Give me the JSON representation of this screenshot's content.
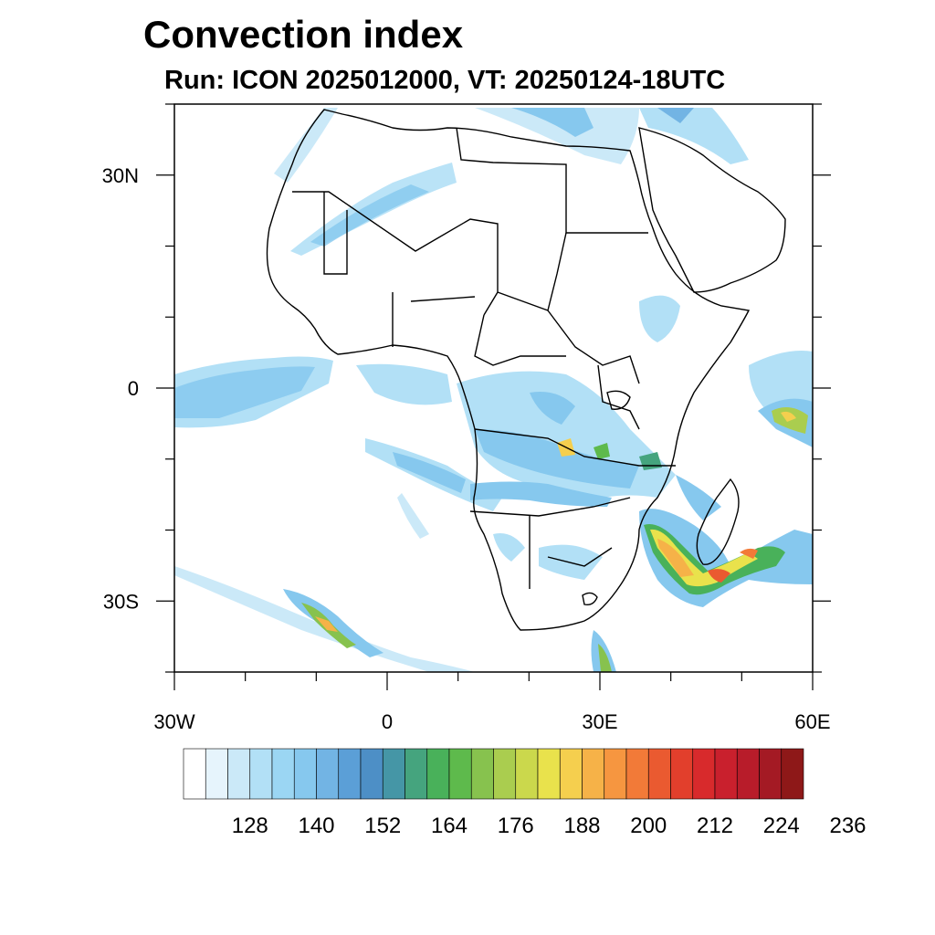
{
  "title": "Convection index",
  "subtitle": "Run: ICON 2025012000,  VT: 20250124-18UTC",
  "map": {
    "extent": {
      "lon_min": -30,
      "lon_max": 60,
      "lat_min": -40,
      "lat_max": 40
    },
    "lat_ticks": [
      {
        "lat": 30,
        "label": "30N"
      },
      {
        "lat": 0,
        "label": "0"
      },
      {
        "lat": -30,
        "label": "30S"
      }
    ],
    "lon_ticks": [
      {
        "lon": -30,
        "label": "30W"
      },
      {
        "lon": 0,
        "label": "0"
      },
      {
        "lon": 30,
        "label": "30E"
      },
      {
        "lon": 60,
        "label": "60E"
      }
    ],
    "region": "Africa"
  },
  "colorbar": {
    "colors": [
      "#ffffff",
      "#e6f4fc",
      "#cbe9f8",
      "#b2e0f6",
      "#9bd6f3",
      "#86c8ee",
      "#72b4e4",
      "#5b9fd7",
      "#4d8fc6",
      "#4596a6",
      "#45a47e",
      "#49b15a",
      "#5eba4c",
      "#87c24e",
      "#aacd4f",
      "#cbd84c",
      "#e9e24c",
      "#f5cf4e",
      "#f6b248",
      "#f69640",
      "#f27a38",
      "#ea5a30",
      "#e23f2c",
      "#d82a2c",
      "#c9202d",
      "#b81c2a",
      "#a41a24",
      "#8e1818"
    ],
    "labels": [
      "128",
      "140",
      "152",
      "164",
      "176",
      "188",
      "200",
      "212",
      "224",
      "236"
    ]
  }
}
